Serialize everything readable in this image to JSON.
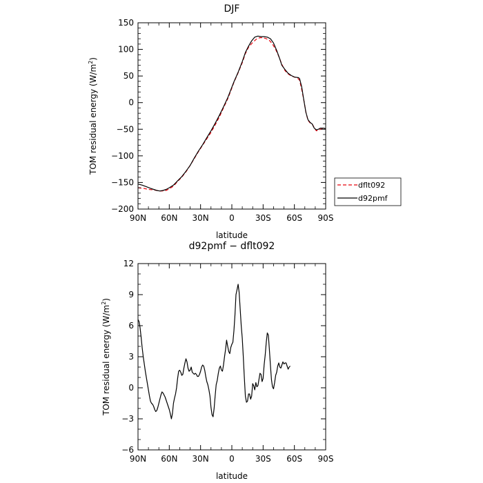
{
  "chart_data": [
    {
      "type": "line",
      "title": "DJF",
      "xlabel": "latitude",
      "ylabel": "TOM residual energy (W/m²)",
      "ylabel_main": "TOM residual energy (W/m",
      "ylabel_sup": "2",
      "ylabel_tail": ")",
      "xlim": [
        90,
        -90
      ],
      "ylim": [
        -200,
        150
      ],
      "xtick_values": [
        90,
        60,
        30,
        0,
        -30,
        -60,
        -90
      ],
      "xtick_labels": [
        "90N",
        "60N",
        "30N",
        "0",
        "30S",
        "60S",
        "90S"
      ],
      "ytick_values": [
        150,
        100,
        50,
        0,
        -50,
        -100,
        -150,
        -200
      ],
      "ytick_labels": [
        "150",
        "100",
        "50",
        "0",
        "−50",
        "−100",
        "−150",
        "−200"
      ],
      "legend": "right",
      "grid": false,
      "series": [
        {
          "name": "dflt092",
          "color": "#e8000b",
          "dash": "dashed",
          "points": [
            [
              90,
              -160
            ],
            [
              85,
              -161
            ],
            [
              80,
              -163
            ],
            [
              75,
              -164
            ],
            [
              72,
              -165
            ],
            [
              70,
              -166
            ],
            [
              67,
              -166
            ],
            [
              63,
              -165
            ],
            [
              60,
              -162
            ],
            [
              56,
              -157
            ],
            [
              52,
              -148
            ],
            [
              48,
              -140
            ],
            [
              44,
              -130
            ],
            [
              40,
              -118
            ],
            [
              36,
              -105
            ],
            [
              32,
              -92
            ],
            [
              28,
              -80
            ],
            [
              24,
              -68
            ],
            [
              20,
              -56
            ],
            [
              16,
              -42
            ],
            [
              12,
              -27
            ],
            [
              8,
              -10
            ],
            [
              4,
              7
            ],
            [
              1,
              22
            ],
            [
              -2,
              38
            ],
            [
              -6,
              56
            ],
            [
              -10,
              75
            ],
            [
              -13,
              92
            ],
            [
              -16,
              104
            ],
            [
              -20,
              113
            ],
            [
              -24,
              120
            ],
            [
              -27,
              122
            ],
            [
              -30,
              122
            ],
            [
              -33,
              120
            ],
            [
              -36,
              117
            ],
            [
              -39,
              110
            ],
            [
              -42,
              100
            ],
            [
              -45,
              87
            ],
            [
              -48,
              72
            ],
            [
              -51,
              60
            ],
            [
              -54,
              54
            ],
            [
              -57,
              50
            ],
            [
              -60,
              48
            ],
            [
              -63,
              46
            ],
            [
              -65,
              42
            ],
            [
              -67,
              25
            ],
            [
              -69,
              5
            ],
            [
              -71,
              -18
            ],
            [
              -73,
              -33
            ],
            [
              -75,
              -38
            ],
            [
              -77,
              -40
            ],
            [
              -79,
              -47
            ],
            [
              -81,
              -53
            ],
            [
              -83,
              -52
            ],
            [
              -85,
              -50
            ],
            [
              -87,
              -49
            ],
            [
              -90,
              -50
            ]
          ]
        },
        {
          "name": "d92pmf",
          "color": "#000000",
          "dash": "solid",
          "points": [
            [
              90,
              -153
            ],
            [
              86,
              -155
            ],
            [
              82,
              -158
            ],
            [
              78,
              -161
            ],
            [
              75,
              -163
            ],
            [
              72,
              -165
            ],
            [
              69,
              -166
            ],
            [
              66,
              -165
            ],
            [
              63,
              -163
            ],
            [
              60,
              -160
            ],
            [
              56,
              -155
            ],
            [
              52,
              -147
            ],
            [
              48,
              -139
            ],
            [
              44,
              -129
            ],
            [
              40,
              -118
            ],
            [
              36,
              -104
            ],
            [
              32,
              -91
            ],
            [
              28,
              -79
            ],
            [
              24,
              -66
            ],
            [
              20,
              -53
            ],
            [
              16,
              -39
            ],
            [
              12,
              -24
            ],
            [
              8,
              -8
            ],
            [
              4,
              9
            ],
            [
              1,
              24
            ],
            [
              -2,
              39
            ],
            [
              -6,
              57
            ],
            [
              -10,
              77
            ],
            [
              -13,
              94
            ],
            [
              -16,
              106
            ],
            [
              -19,
              116
            ],
            [
              -22,
              123
            ],
            [
              -25,
              125
            ],
            [
              -28,
              124
            ],
            [
              -31,
              124
            ],
            [
              -34,
              123
            ],
            [
              -37,
              120
            ],
            [
              -40,
              112
            ],
            [
              -43,
              98
            ],
            [
              -46,
              82
            ],
            [
              -48,
              70
            ],
            [
              -51,
              62
            ],
            [
              -54,
              55
            ],
            [
              -57,
              51
            ],
            [
              -60,
              48
            ],
            [
              -64,
              47
            ],
            [
              -65,
              45
            ],
            [
              -67,
              30
            ],
            [
              -69,
              5
            ],
            [
              -71,
              -18
            ],
            [
              -73,
              -32
            ],
            [
              -75,
              -37
            ],
            [
              -77,
              -40
            ],
            [
              -79,
              -48
            ],
            [
              -81,
              -51
            ],
            [
              -83,
              -50
            ],
            [
              -85,
              -48
            ],
            [
              -88,
              -48
            ],
            [
              -90,
              -49
            ]
          ]
        }
      ]
    },
    {
      "type": "line",
      "title": "d92pmf − dflt092",
      "xlabel": "latitude",
      "ylabel": "TOM residual energy (W/m²)",
      "ylabel_main": "TOM residual energy (W/m",
      "ylabel_sup": "2",
      "ylabel_tail": ")",
      "xlim": [
        90,
        -90
      ],
      "ylim": [
        -6,
        12
      ],
      "xtick_values": [
        90,
        60,
        30,
        0,
        -30,
        -60,
        -90
      ],
      "xtick_labels": [
        "90N",
        "60N",
        "30N",
        "0",
        "30S",
        "60S",
        "90S"
      ],
      "ytick_values": [
        12,
        9,
        6,
        3,
        0,
        -3,
        -6
      ],
      "ytick_labels": [
        "12",
        "9",
        "6",
        "3",
        "0",
        "−3",
        "−6"
      ],
      "legend": "none",
      "grid": false,
      "series": [
        {
          "color": "#000000",
          "dash": "solid",
          "points": [
            [
              90,
              6.6
            ],
            [
              89,
              6.4
            ],
            [
              88,
              5.8
            ],
            [
              87,
              4.9
            ],
            [
              86,
              3.9
            ],
            [
              85,
              3.0
            ],
            [
              84,
              2.3
            ],
            [
              83,
              1.6
            ],
            [
              82,
              1.0
            ],
            [
              81,
              0.4
            ],
            [
              80,
              -0.2
            ],
            [
              79,
              -0.8
            ],
            [
              78,
              -1.3
            ],
            [
              77,
              -1.5
            ],
            [
              76,
              -1.6
            ],
            [
              75,
              -1.8
            ],
            [
              74,
              -2.1
            ],
            [
              73,
              -2.3
            ],
            [
              72,
              -2.2
            ],
            [
              71,
              -1.9
            ],
            [
              70,
              -1.5
            ],
            [
              69,
              -1.1
            ],
            [
              68,
              -0.7
            ],
            [
              67,
              -0.4
            ],
            [
              66,
              -0.5
            ],
            [
              65,
              -0.7
            ],
            [
              64,
              -0.9
            ],
            [
              63,
              -1.2
            ],
            [
              62,
              -1.5
            ],
            [
              61,
              -1.8
            ],
            [
              60,
              -2.1
            ],
            [
              59,
              -2.5
            ],
            [
              58,
              -3.0
            ],
            [
              57,
              -2.5
            ],
            [
              56,
              -1.5
            ],
            [
              55,
              -1.0
            ],
            [
              54,
              -0.6
            ],
            [
              53,
              0.0
            ],
            [
              52,
              0.9
            ],
            [
              51,
              1.6
            ],
            [
              50,
              1.7
            ],
            [
              49,
              1.5
            ],
            [
              48,
              1.2
            ],
            [
              47,
              1.3
            ],
            [
              46,
              1.9
            ],
            [
              45,
              2.4
            ],
            [
              44,
              2.8
            ],
            [
              43,
              2.5
            ],
            [
              42,
              1.9
            ],
            [
              41,
              1.6
            ],
            [
              40,
              1.7
            ],
            [
              39,
              2.0
            ],
            [
              38,
              1.5
            ],
            [
              37,
              1.4
            ],
            [
              36,
              1.3
            ],
            [
              35,
              1.4
            ],
            [
              34,
              1.3
            ],
            [
              33,
              1.1
            ],
            [
              32,
              1.1
            ],
            [
              31,
              1.3
            ],
            [
              30,
              1.6
            ],
            [
              29,
              2.0
            ],
            [
              28,
              2.2
            ],
            [
              27,
              2.1
            ],
            [
              26,
              1.7
            ],
            [
              25,
              1.1
            ],
            [
              24,
              0.6
            ],
            [
              23,
              0.3
            ],
            [
              22,
              -0.2
            ],
            [
              21,
              -0.8
            ],
            [
              20,
              -1.9
            ],
            [
              19,
              -2.6
            ],
            [
              18,
              -2.8
            ],
            [
              17,
              -2.0
            ],
            [
              16,
              -0.8
            ],
            [
              15,
              0.3
            ],
            [
              14,
              0.7
            ],
            [
              13,
              1.4
            ],
            [
              12,
              1.9
            ],
            [
              11,
              2.1
            ],
            [
              10,
              1.7
            ],
            [
              9,
              1.6
            ],
            [
              8,
              2.2
            ],
            [
              7,
              3.0
            ],
            [
              6,
              3.7
            ],
            [
              5,
              4.6
            ],
            [
              4,
              4.0
            ],
            [
              3,
              3.5
            ],
            [
              2,
              3.3
            ],
            [
              1,
              3.9
            ],
            [
              0,
              4.2
            ],
            [
              -1,
              4.4
            ],
            [
              -2,
              5.5
            ],
            [
              -3,
              7.0
            ],
            [
              -4,
              9.0
            ],
            [
              -5,
              9.5
            ],
            [
              -6,
              10.0
            ],
            [
              -7,
              9.2
            ],
            [
              -8,
              7.6
            ],
            [
              -9,
              6.0
            ],
            [
              -10,
              4.8
            ],
            [
              -11,
              3.0
            ],
            [
              -12,
              1.0
            ],
            [
              -13,
              -0.8
            ],
            [
              -14,
              -1.4
            ],
            [
              -15,
              -1.3
            ],
            [
              -16,
              -0.6
            ],
            [
              -17,
              -0.6
            ],
            [
              -18,
              -1.1
            ],
            [
              -19,
              -0.8
            ],
            [
              -20,
              0.4
            ],
            [
              -21,
              0.2
            ],
            [
              -22,
              -0.2
            ],
            [
              -23,
              0.5
            ],
            [
              -24,
              0.1
            ],
            [
              -25,
              0.2
            ],
            [
              -26,
              0.8
            ],
            [
              -27,
              1.4
            ],
            [
              -28,
              1.3
            ],
            [
              -29,
              0.6
            ],
            [
              -30,
              0.9
            ],
            [
              -31,
              2.2
            ],
            [
              -32,
              3.2
            ],
            [
              -33,
              4.4
            ],
            [
              -34,
              5.3
            ],
            [
              -35,
              5.1
            ],
            [
              -36,
              3.7
            ],
            [
              -37,
              2.2
            ],
            [
              -38,
              0.8
            ],
            [
              -39,
              0.1
            ],
            [
              -40,
              -0.1
            ],
            [
              -41,
              0.5
            ],
            [
              -42,
              1.2
            ],
            [
              -43,
              1.5
            ],
            [
              -44,
              2.1
            ],
            [
              -45,
              2.4
            ],
            [
              -46,
              2.0
            ],
            [
              -47,
              1.9
            ],
            [
              -48,
              2.2
            ],
            [
              -49,
              2.5
            ],
            [
              -50,
              2.3
            ],
            [
              -51,
              2.4
            ],
            [
              -52,
              2.4
            ],
            [
              -53,
              2.1
            ],
            [
              -54,
              1.8
            ],
            [
              -55,
              2.0
            ],
            [
              -56,
              2.1
            ]
          ]
        }
      ]
    }
  ]
}
